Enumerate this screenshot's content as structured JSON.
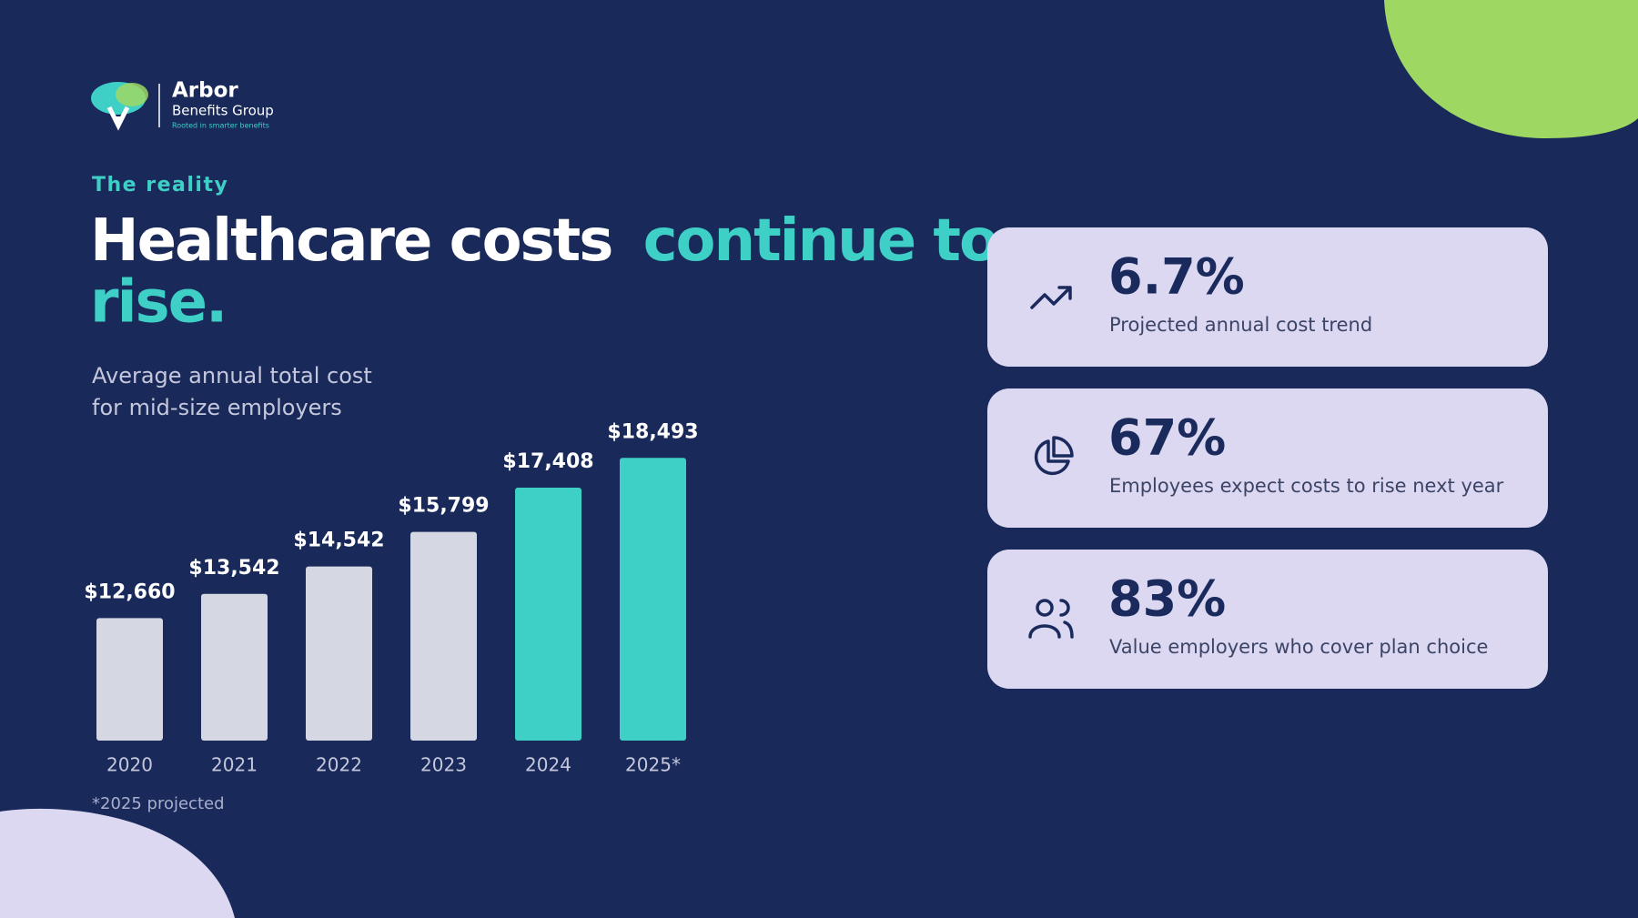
{
  "logo": {
    "name": "Arbor",
    "group": "Benefits Group",
    "tagline": "Rooted in smarter benefits"
  },
  "eyebrow": "The reality",
  "headline": {
    "lead": "Healthcare costs",
    "accent": [
      "continue to",
      "rise."
    ]
  },
  "chart_data": {
    "type": "bar",
    "title": [
      "Average annual total cost",
      "for mid-size employers"
    ],
    "categories": [
      "2020",
      "2021",
      "2022",
      "2023",
      "2024",
      "2025*"
    ],
    "values": [
      12660,
      13542,
      14542,
      15799,
      17408,
      18493
    ],
    "value_labels": [
      "$12,660",
      "$13,542",
      "$14,542",
      "$15,799",
      "$17,408",
      "$18,493"
    ],
    "colors": [
      "#d5d7e3",
      "#d5d7e3",
      "#d5d7e3",
      "#d5d7e3",
      "#3ecfc6",
      "#3ecfc6"
    ],
    "ylim": [
      8200,
      19000
    ],
    "footnote": "*2025 projected"
  },
  "stats": [
    {
      "value": "6.7%",
      "label": "Projected annual cost trend"
    },
    {
      "value": "67%",
      "label": "Employees expect costs to rise next year"
    },
    {
      "value": "83%",
      "label": "Value employers who cover plan choice"
    }
  ]
}
